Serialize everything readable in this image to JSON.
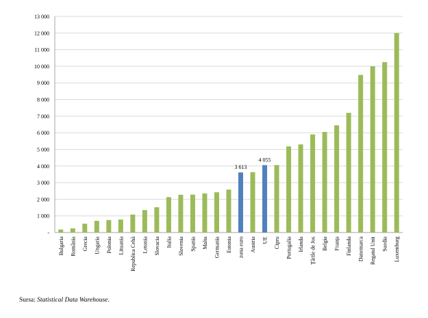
{
  "chart_data": {
    "type": "bar",
    "ylim": [
      0,
      13000
    ],
    "ytick_values": [
      0,
      1000,
      2000,
      3000,
      4000,
      5000,
      6000,
      7000,
      8000,
      9000,
      10000,
      11000,
      12000,
      13000
    ],
    "ytick_labels": [
      "-",
      "1 000",
      "2 000",
      "3 000",
      "4 000",
      "5 000",
      "6 000",
      "7 000",
      "8 000",
      "9 000",
      "10 000",
      "11 000",
      "12 000",
      "13 000"
    ],
    "grid": true,
    "categories": [
      "Bulgaria",
      "România",
      "Grecia",
      "Ungaria",
      "Polonia",
      "Lituania",
      "Republica Cehă",
      "Letonia",
      "Slovacia",
      "Italia",
      "Slovenia",
      "Spania",
      "Malta",
      "Germania",
      "Estonia",
      "zona euro",
      "Austria",
      "UE",
      "Cipru",
      "Portugalia",
      "Irlanda",
      "Țările de Jos",
      "Belgia",
      "Franța",
      "Finlanda",
      "Danemarca",
      "Regatul Unit",
      "Suedia",
      "Luxemburg"
    ],
    "values": [
      180,
      250,
      530,
      700,
      750,
      780,
      1080,
      1350,
      1520,
      2130,
      2270,
      2280,
      2350,
      2420,
      2580,
      3613,
      3630,
      4055,
      4060,
      5180,
      5300,
      5900,
      6050,
      6450,
      7200,
      9480,
      10000,
      10250,
      12000
    ],
    "highlight_indices": [
      15,
      17
    ],
    "data_labels": [
      {
        "index": 15,
        "text": "3 613"
      },
      {
        "index": 17,
        "text": "4 055"
      }
    ],
    "colors": {
      "bar": "#9bbb59",
      "highlight": "#4f81bd",
      "grid": "#d9d9d9",
      "axis": "#a6a6a6"
    }
  },
  "source": {
    "prefix": "Sursa: ",
    "name": "Statistical Data Warehouse",
    "suffix": "."
  }
}
